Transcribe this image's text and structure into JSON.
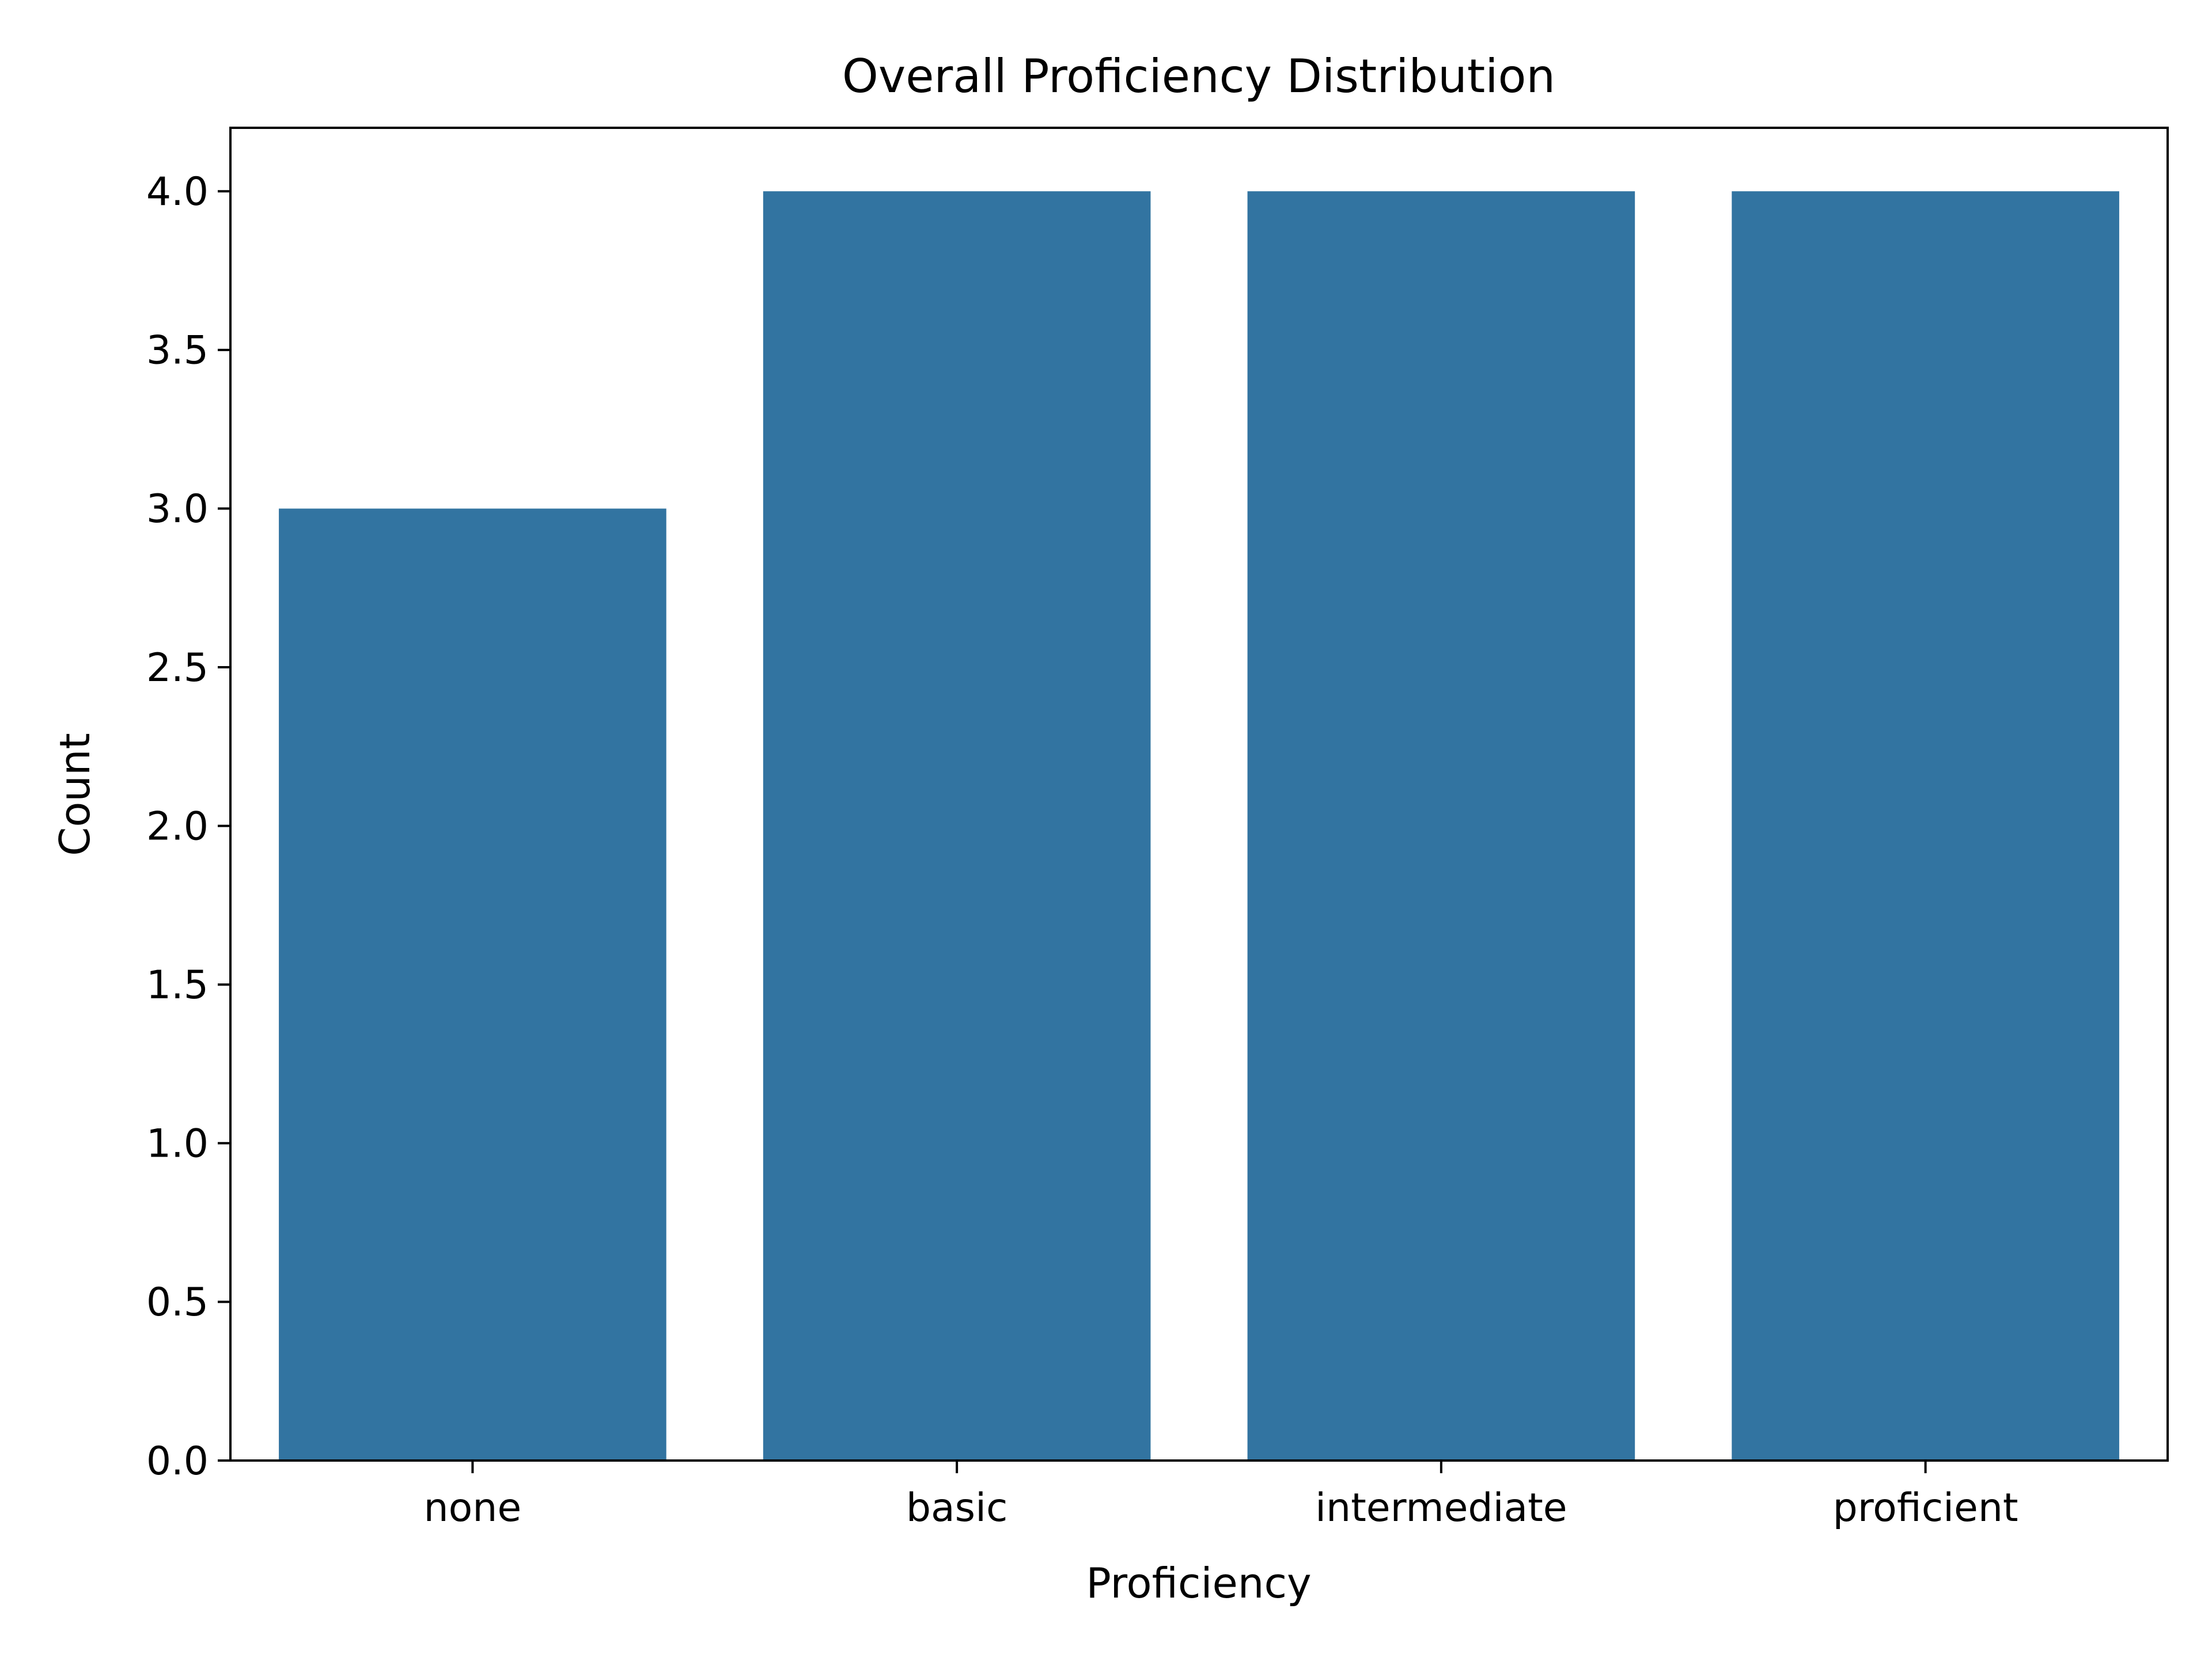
{
  "chart_data": {
    "type": "bar",
    "title": "Overall Proficiency Distribution",
    "xlabel": "Proficiency",
    "ylabel": "Count",
    "categories": [
      "none",
      "basic",
      "intermediate",
      "proficient"
    ],
    "values": [
      3,
      4,
      4,
      4
    ],
    "ylim": [
      0,
      4.2
    ],
    "yticks": [
      "0.0",
      "0.5",
      "1.0",
      "1.5",
      "2.0",
      "2.5",
      "3.0",
      "3.5",
      "4.0"
    ],
    "grid": false,
    "legend": "none",
    "bar_color": "#3274a1",
    "axis_color": "#000000"
  }
}
